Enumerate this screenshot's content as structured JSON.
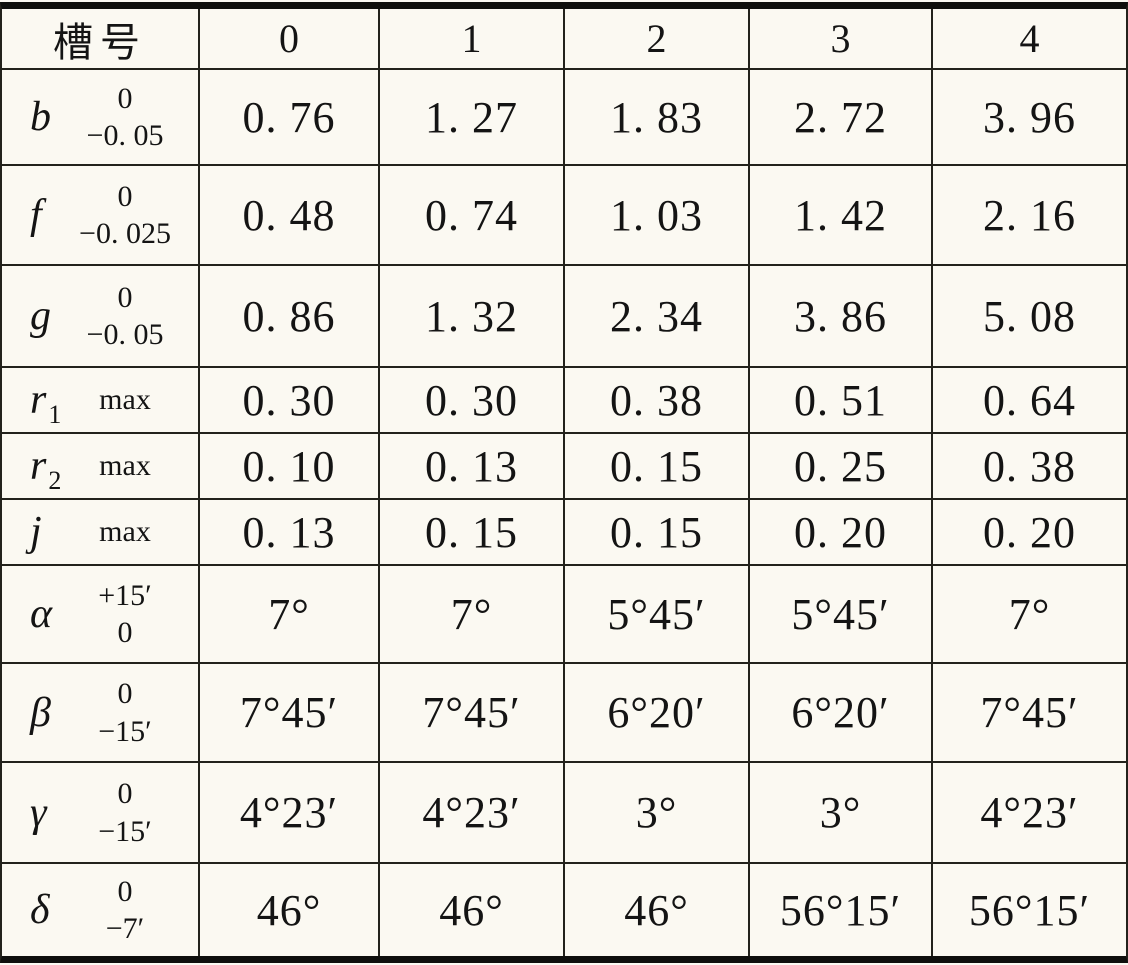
{
  "table": {
    "header": {
      "label": "槽号",
      "columns": [
        "0",
        "1",
        "2",
        "3",
        "4"
      ]
    },
    "rows": [
      {
        "sym": "b",
        "sub": "",
        "tol": [
          "0",
          "−0. 05"
        ],
        "values": [
          "0. 76",
          "1. 27",
          "1. 83",
          "2. 72",
          "3. 96"
        ]
      },
      {
        "sym": "f",
        "sub": "",
        "tol": [
          "0",
          "−0. 025"
        ],
        "values": [
          "0. 48",
          "0. 74",
          "1. 03",
          "1. 42",
          "2. 16"
        ]
      },
      {
        "sym": "g",
        "sub": "",
        "tol": [
          "0",
          "−0. 05"
        ],
        "values": [
          "0. 86",
          "1. 32",
          "2. 34",
          "3. 86",
          "5. 08"
        ]
      },
      {
        "sym": "r",
        "sub": "1",
        "tol": [
          "max"
        ],
        "values": [
          "0. 30",
          "0. 30",
          "0. 38",
          "0. 51",
          "0. 64"
        ]
      },
      {
        "sym": "r",
        "sub": "2",
        "tol": [
          "max"
        ],
        "values": [
          "0. 10",
          "0. 13",
          "0. 15",
          "0. 25",
          "0. 38"
        ]
      },
      {
        "sym": "j",
        "sub": "",
        "tol": [
          "max"
        ],
        "values": [
          "0. 13",
          "0. 15",
          "0. 15",
          "0. 20",
          "0. 20"
        ]
      },
      {
        "sym": "α",
        "sub": "",
        "tol": [
          "+15′",
          "0"
        ],
        "values": [
          "7°",
          "7°",
          "5°45′",
          "5°45′",
          "7°"
        ]
      },
      {
        "sym": "β",
        "sub": "",
        "tol": [
          "0",
          "−15′"
        ],
        "values": [
          "7°45′",
          "7°45′",
          "6°20′",
          "6°20′",
          "7°45′"
        ]
      },
      {
        "sym": "γ",
        "sub": "",
        "tol": [
          "0",
          "−15′"
        ],
        "values": [
          "4°23′",
          "4°23′",
          "3°",
          "3°",
          "4°23′"
        ]
      },
      {
        "sym": "δ",
        "sub": "",
        "tol": [
          "0",
          "−7′"
        ],
        "values": [
          "46°",
          "46°",
          "46°",
          "56°15′",
          "56°15′"
        ]
      }
    ]
  },
  "colors": {
    "background": "#fbf9f2",
    "grid_line": "#23221c",
    "thick_rule": "#0f0f0d",
    "text": "#141414"
  }
}
